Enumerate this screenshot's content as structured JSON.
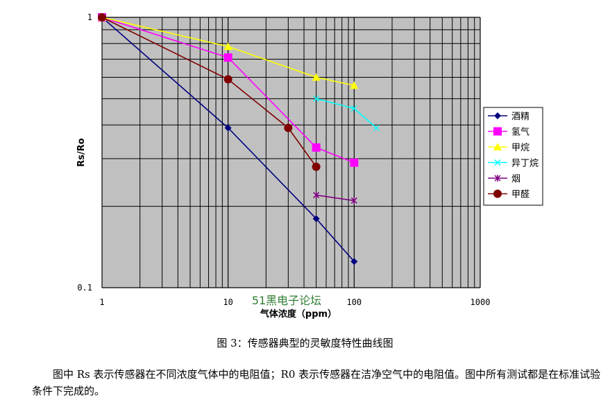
{
  "chart_data": {
    "type": "line",
    "title": "",
    "xlabel": "气体浓度（ppm）",
    "ylabel": "Rs/Ro",
    "xscale": "log",
    "yscale": "log",
    "xlim": [
      1,
      1000
    ],
    "ylim": [
      0.1,
      1
    ],
    "grid": true,
    "legend_position": "right",
    "x_tick_labels": [
      "1",
      "10",
      "100",
      "1000"
    ],
    "y_tick_labels": [
      "0.1",
      "1"
    ],
    "series": [
      {
        "name": "酒精",
        "color": "#000080",
        "marker": "diamond",
        "x": [
          1,
          10,
          50,
          100
        ],
        "y": [
          1.0,
          0.39,
          0.18,
          0.125
        ],
        "x_extra": [],
        "y_extra": []
      },
      {
        "name": "氢气",
        "color": "#ff00ff",
        "marker": "square",
        "x": [
          1,
          10,
          50,
          100
        ],
        "y": [
          1.0,
          0.71,
          0.33,
          0.29
        ]
      },
      {
        "name": "甲烷",
        "color": "#ffff00",
        "marker": "triangle",
        "x": [
          1,
          10,
          50,
          100
        ],
        "y": [
          1.0,
          0.78,
          0.6,
          0.56
        ]
      },
      {
        "name": "异丁烷",
        "color": "#00ffff",
        "marker": "x",
        "x": [
          50,
          100,
          150
        ],
        "y": [
          0.5,
          0.46,
          0.39
        ]
      },
      {
        "name": "烟",
        "color": "#800080",
        "marker": "star",
        "x": [
          50,
          100
        ],
        "y": [
          0.22,
          0.21
        ]
      },
      {
        "name": "甲醛",
        "color": "#800000",
        "marker": "circle",
        "x": [
          1,
          10,
          30,
          50
        ],
        "y": [
          1.0,
          0.59,
          0.39,
          0.28
        ]
      }
    ]
  },
  "watermark": "51黑电子论坛",
  "caption": "图 3：传感器典型的灵敏度特性曲线图",
  "body_text": "图中 Rs 表示传感器在不同浓度气体中的电阻值；R0 表示传感器在洁净空气中的电阻值。图中所有测试都是在标准试验条件下完成的。"
}
